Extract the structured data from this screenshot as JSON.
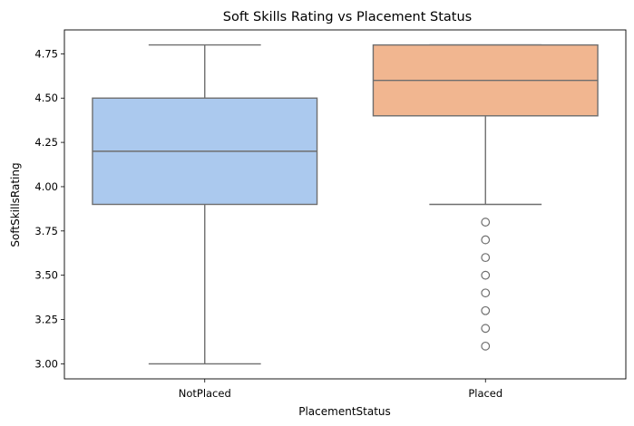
{
  "chart_data": {
    "type": "box",
    "title": "Soft Skills Rating vs Placement Status",
    "xlabel": "PlacementStatus",
    "ylabel": "SoftSkillsRating",
    "ylim": [
      2.915,
      4.885
    ],
    "yticks": [
      3.0,
      3.25,
      3.5,
      3.75,
      4.0,
      4.25,
      4.5,
      4.75
    ],
    "ytick_labels": [
      "3.00",
      "3.25",
      "3.50",
      "3.75",
      "4.00",
      "4.25",
      "4.50",
      "4.75"
    ],
    "categories": [
      "NotPlaced",
      "Placed"
    ],
    "grid": false,
    "boxes": [
      {
        "name": "NotPlaced",
        "whisker_low": 3.0,
        "q1": 3.9,
        "median": 4.2,
        "q3": 4.5,
        "whisker_high": 4.8,
        "outliers": [],
        "color": "#abc9ee"
      },
      {
        "name": "Placed",
        "whisker_low": 3.9,
        "q1": 4.4,
        "median": 4.6,
        "q3": 4.8,
        "whisker_high": 4.8,
        "outliers": [
          3.8,
          3.7,
          3.6,
          3.5,
          3.4,
          3.3,
          3.2,
          3.1
        ],
        "color": "#f1b690"
      }
    ],
    "line_color": "#6e6e6e"
  }
}
